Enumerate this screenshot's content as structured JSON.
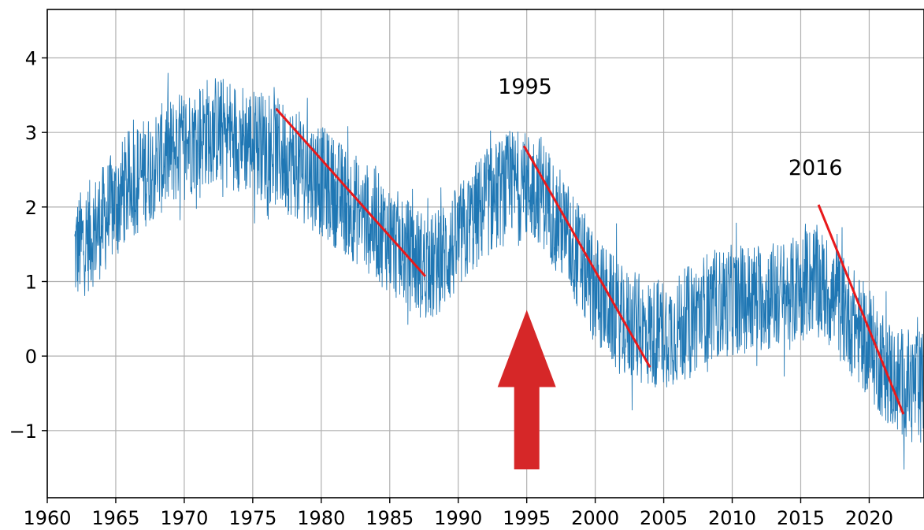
{
  "chart_data": {
    "type": "line",
    "title": "",
    "xlabel": "",
    "ylabel": "",
    "xlim": [
      1960,
      2024
    ],
    "ylim": [
      -1.9,
      4.65
    ],
    "grid": true,
    "x_ticks": [
      1960,
      1965,
      1970,
      1975,
      1980,
      1985,
      1990,
      1995,
      2000,
      2005,
      2010,
      2015,
      2020
    ],
    "y_ticks": [
      -1,
      0,
      1,
      2,
      3,
      4
    ],
    "x_tick_labels": [
      "1960",
      "1965",
      "1970",
      "1975",
      "1980",
      "1985",
      "1990",
      "1995",
      "2000",
      "2005",
      "2010",
      "2015",
      "2020"
    ],
    "y_tick_labels": [
      "−1",
      "0",
      "1",
      "2",
      "3",
      "4"
    ],
    "series": [
      {
        "color": "#1f77b4",
        "x_start": 1962.0,
        "x_end": 2023.95,
        "trend_x": [
          1962,
          1964,
          1966,
          1968,
          1970,
          1972,
          1974,
          1976,
          1978,
          1980,
          1982,
          1984,
          1986,
          1988,
          1990,
          1992,
          1994,
          1996,
          1998,
          2000,
          2002,
          2004,
          2006,
          2008,
          2010,
          2012,
          2014,
          2016,
          2018,
          2020,
          2022,
          2024
        ],
        "trend_y": [
          1.4,
          1.8,
          2.3,
          2.6,
          2.85,
          3.05,
          2.95,
          2.8,
          2.6,
          2.35,
          2.05,
          1.75,
          1.4,
          1.15,
          1.55,
          2.05,
          2.3,
          2.25,
          1.6,
          0.9,
          0.45,
          0.3,
          0.35,
          0.65,
          0.75,
          0.8,
          0.8,
          1.05,
          0.65,
          0.15,
          -0.35,
          -0.4
        ],
        "noise_amplitude": 0.75
      }
    ],
    "trend_lines": [
      {
        "x": [
          1976.7,
          1987.6
        ],
        "y": [
          3.32,
          1.07
        ],
        "color": "#e8191b"
      },
      {
        "x": [
          1994.8,
          2004.0
        ],
        "y": [
          2.82,
          -0.15
        ],
        "color": "#e8191b"
      },
      {
        "x": [
          2016.3,
          2022.5
        ],
        "y": [
          2.03,
          -0.78
        ],
        "color": "#e8191b"
      }
    ],
    "annotations": [
      {
        "text": "1995",
        "x": 1992.9,
        "y": 3.52
      },
      {
        "text": "2016",
        "x": 2014.1,
        "y": 2.43
      }
    ],
    "arrow": {
      "x": 1995.0,
      "y_tail": -1.52,
      "y_head": 0.62,
      "color": "#d62728"
    }
  }
}
